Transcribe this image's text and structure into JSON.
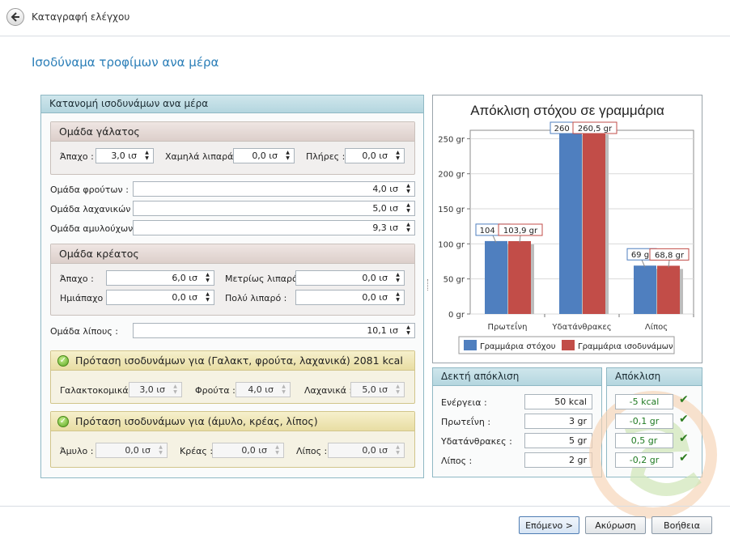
{
  "header": {
    "title": "Καταγραφή ελέγχου",
    "subtitle": "Ισοδύναμα τροφίμων ανα μέρα"
  },
  "left_panel": {
    "title": "Κατανομή ισοδυνάμων ανα μέρα",
    "milk_group": {
      "title": "Ομάδα γάλατος",
      "fields": [
        {
          "label": "Άπαχο :",
          "value": "3,0 ισ"
        },
        {
          "label": "Χαμηλά λιπαρά :",
          "value": "0,0 ισ"
        },
        {
          "label": "Πλήρες :",
          "value": "0,0 ισ"
        }
      ]
    },
    "fruits": {
      "label": "Ομάδα φρούτων :",
      "value": "4,0 ισ"
    },
    "vegetables": {
      "label": "Ομάδα λαχανικών :",
      "value": "5,0 ισ"
    },
    "starches": {
      "label": "Ομάδα αμυλούχων :",
      "value": "9,3 ισ"
    },
    "meat_group": {
      "title": "Ομάδα κρέατος",
      "fields": [
        {
          "label": "Άπαχο :",
          "value": "6,0 ισ"
        },
        {
          "label": "Μετρίως λιπαρό :",
          "value": "0,0 ισ"
        },
        {
          "label": "Ημιάπαχο :",
          "value": "0,0 ισ"
        },
        {
          "label": "Πολύ λιπαρό :",
          "value": "0,0 ισ"
        }
      ]
    },
    "fats": {
      "label": "Ομάδα λίπους :",
      "value": "10,1 ισ"
    },
    "suggest1": {
      "title": "Πρόταση ισοδυνάμων για (Γαλακτ, φρούτα, λαχανικά)  2081 kcal",
      "fields": [
        {
          "label": "Γαλακτοκομικά :",
          "value": "3,0 ισ"
        },
        {
          "label": "Φρούτα :",
          "value": "4,0 ισ"
        },
        {
          "label": "Λαχανικά :",
          "value": "5,0 ισ"
        }
      ]
    },
    "suggest2": {
      "title": "Πρόταση ισοδυνάμων για (άμυλο, κρέας, λίπος)",
      "fields": [
        {
          "label": "Άμυλο :",
          "value": "0,0 ισ"
        },
        {
          "label": "Κρέας :",
          "value": "0,0 ισ"
        },
        {
          "label": "Λίπος :",
          "value": "0,0 ισ"
        }
      ]
    }
  },
  "acceptable": {
    "title": "Δεκτή απόκλιση",
    "rows": [
      {
        "label": "Ενέργεια :",
        "value": "50 kcal"
      },
      {
        "label": "Πρωτεΐνη :",
        "value": "3 gr"
      },
      {
        "label": "Υδατάνθρακες :",
        "value": "5 gr"
      },
      {
        "label": "Λίπος :",
        "value": "2 gr"
      }
    ]
  },
  "deviation": {
    "title": "Απόκλιση",
    "values": [
      "-5 kcal",
      "-0,1 gr",
      "0,5 gr",
      "-0,2 gr"
    ]
  },
  "buttons": {
    "next": "Επόμενο >",
    "cancel": "Ακύρωση",
    "help": "Βοήθεια"
  },
  "colors": {
    "target": "#4f7fbf",
    "equivalents": "#c24d48",
    "accent": "#2c7fb8"
  },
  "chart_data": {
    "type": "bar",
    "title": "Απόκλιση στόχου σε γραμμάρια",
    "categories": [
      "Πρωτεΐνη",
      "Υδατάνθρακες",
      "Λίπος"
    ],
    "series": [
      {
        "name": "Γραμμάρια στόχου",
        "values": [
          104,
          260,
          69
        ],
        "labels": [
          "104 gr",
          "260 gr",
          "69 gr"
        ]
      },
      {
        "name": "Γραμμάρια ισοδυνάμων",
        "values": [
          103.9,
          260.5,
          68.8
        ],
        "labels": [
          "103,9 gr",
          "260,5 gr",
          "68,8 gr"
        ]
      }
    ],
    "yticks": [
      "0 gr",
      "50 gr",
      "100 gr",
      "150 gr",
      "200 gr",
      "250 gr"
    ],
    "ylim": [
      0,
      262
    ],
    "grid": true,
    "legend": "bottom"
  }
}
